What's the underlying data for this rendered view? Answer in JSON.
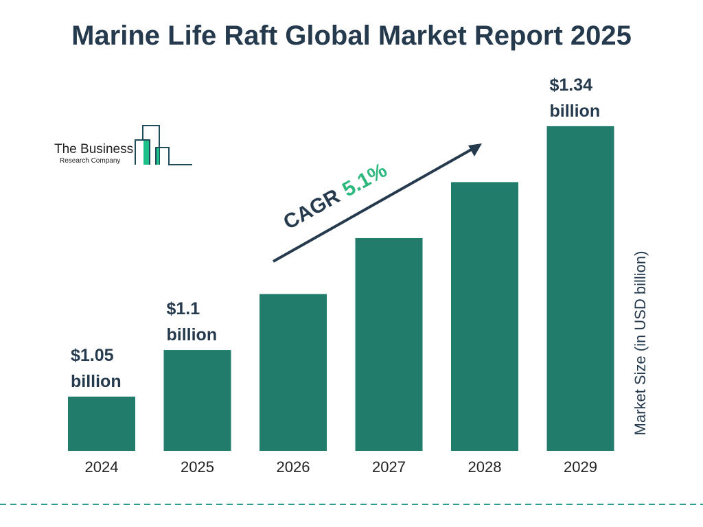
{
  "title": "Marine Life Raft Global Market Report 2025",
  "logo": {
    "line1": "The Business",
    "line2": "Research Company"
  },
  "chart_data": {
    "type": "bar",
    "categories": [
      "2024",
      "2025",
      "2026",
      "2027",
      "2028",
      "2029"
    ],
    "values": [
      1.05,
      1.1,
      1.16,
      1.22,
      1.28,
      1.34
    ],
    "data_labels": [
      {
        "index": 0,
        "line1": "$1.05",
        "line2": "billion"
      },
      {
        "index": 1,
        "line1": "$1.1",
        "line2": "billion"
      },
      {
        "index": 5,
        "line1": "$1.34",
        "line2": "billion"
      }
    ],
    "ylabel": "Market Size (in USD billion)",
    "annotation": {
      "label": "CAGR",
      "value": "5.1%"
    },
    "colors": {
      "bar": "#217c6c",
      "text": "#263a4e",
      "cagr": "#2db87d",
      "dash": "#2a9d8f"
    },
    "grid": false
  }
}
